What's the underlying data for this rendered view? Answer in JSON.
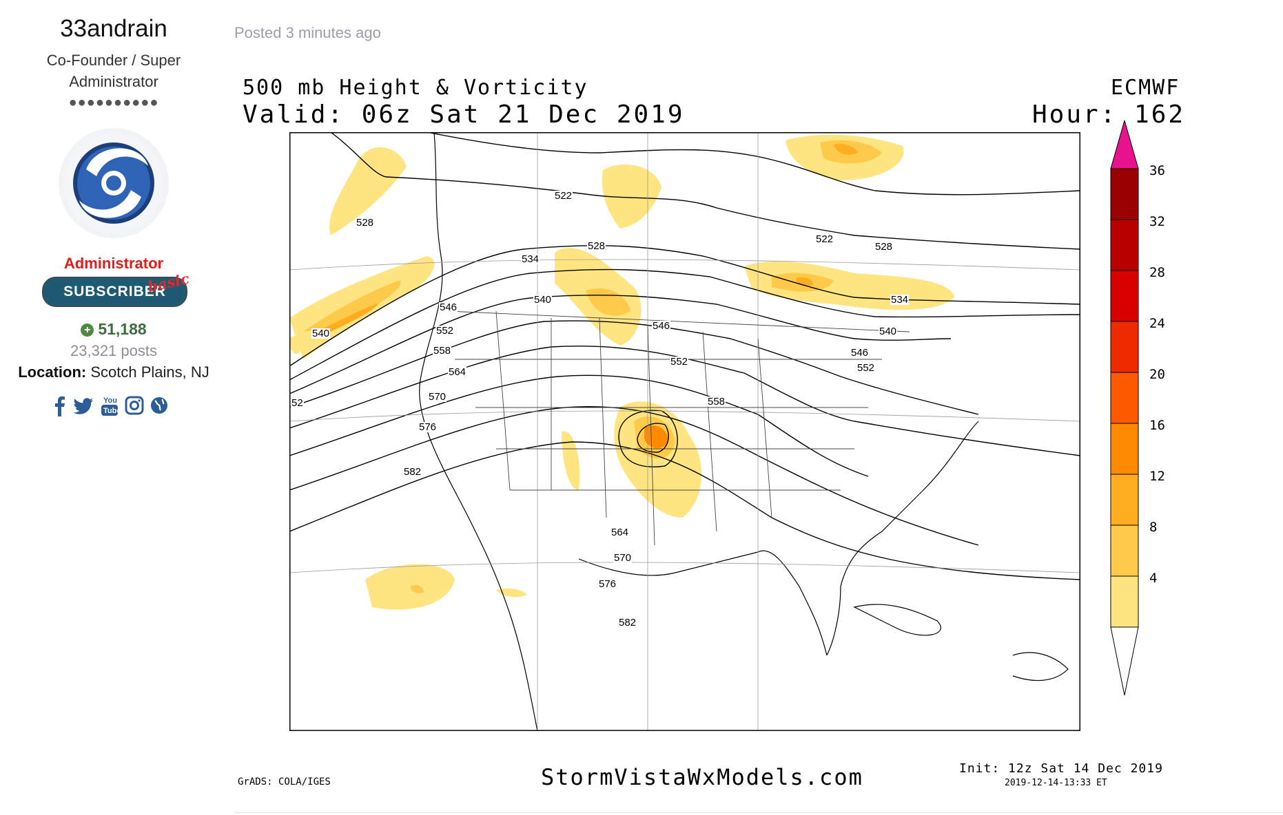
{
  "profile": {
    "username": "33andrain",
    "role_title": "Co-Founder / Super Administrator",
    "pips": "●●●●●●●●●●",
    "group": "Administrator",
    "badge_text": "SUBSCRIBER",
    "badge_script": "basic",
    "reputation": "51,188",
    "reputation_icon": "plus-circle-icon",
    "posts": "23,321 posts",
    "location_label": "Location:",
    "location_value": "Scotch Plains, NJ",
    "social_icons": [
      "facebook-icon",
      "twitter-icon",
      "youtube-icon",
      "instagram-icon",
      "globe-icon"
    ]
  },
  "post": {
    "posted_text": "Posted 3 minutes ago"
  },
  "figure": {
    "title_left_1": "500 mb Height & Vorticity",
    "title_left_2": "Valid: 06z Sat 21 Dec 2019",
    "title_right_1": "ECMWF",
    "title_right_2": "Hour: 162",
    "footer_left": "GrADS: COLA/IGES",
    "footer_center": "StormVistaWxModels.com",
    "footer_init": "Init: 12z Sat 14 Dec 2019",
    "footer_stamp": "2019-12-14-13:33 ET",
    "contour_labels": [
      "522",
      "528",
      "528",
      "534",
      "540",
      "540",
      "546",
      "546",
      "552",
      "552",
      "558",
      "564",
      "570",
      "576",
      "582",
      "522",
      "528",
      "534",
      "540",
      "546",
      "552",
      "558",
      "564",
      "570",
      "576",
      "582",
      "52"
    ],
    "colorbar_labels": [
      "36",
      "32",
      "28",
      "24",
      "20",
      "16",
      "12",
      "8",
      "4"
    ],
    "colorbar_colors": [
      "#9b0000",
      "#b80000",
      "#d80000",
      "#ee2a00",
      "#fc5a00",
      "#fe8a00",
      "#ffad20",
      "#ffc94a",
      "#ffe482"
    ],
    "colorbar_top_color": "#e8118e"
  }
}
